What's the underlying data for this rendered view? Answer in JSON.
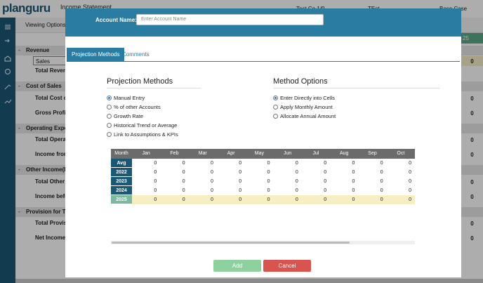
{
  "topbar": {
    "logo": "planguru",
    "report": "Income Statement",
    "company": "Test Co 1/9",
    "scenario_short": "TEst",
    "scenario": "Base Case",
    "viewing": "Viewing Options",
    "column_header": "25"
  },
  "background": {
    "rows": [
      {
        "marker": "-",
        "label": "Revenue"
      },
      {
        "label": "Sales",
        "value": 0
      },
      {
        "label": "Total Revenu"
      },
      {
        "marker": "-",
        "label": "Cost of Sales"
      },
      {
        "label": "Total Cost of",
        "value": 0
      },
      {
        "label": "Gross Profit",
        "value": 0
      },
      {
        "marker": "-",
        "label": "Operating Expen"
      },
      {
        "label": "Total Operati",
        "value": 0
      },
      {
        "label": "Income from",
        "value": 0
      },
      {
        "marker": "-",
        "label": "Other Income(Ex"
      },
      {
        "label": "Total Other In",
        "value": 0
      },
      {
        "label": "Income befor",
        "value": 0
      },
      {
        "marker": "-",
        "label": "Provision for Tax"
      },
      {
        "label": "Total Provisi",
        "value": 0
      },
      {
        "label": "Net Income",
        "value": 0
      }
    ]
  },
  "modal": {
    "account_label": "Account Name:",
    "account_placeholder": "Enter Account Name",
    "tabs": [
      "Projection Methods",
      "Comments"
    ],
    "methods_heading": "Projection Methods",
    "methods": [
      "Manual Entry",
      "% of other Accounts",
      "Growth Rate",
      "Historical Trend or Average",
      "Link to Assumptions & KPIs"
    ],
    "method_selected": 0,
    "options_heading": "Method Options",
    "options": [
      "Enter Directly into Cells",
      "Apply Monthly Amount",
      "Allocate Annual Amount"
    ],
    "option_selected": 0,
    "grid": {
      "header": [
        "Month",
        "Jan",
        "Feb",
        "Mar",
        "Apr",
        "May",
        "Jun",
        "Jul",
        "Aug",
        "Sep",
        "Oct"
      ],
      "rows": [
        {
          "label": "Avg",
          "values": [
            0,
            0,
            0,
            0,
            0,
            0,
            0,
            0,
            0,
            0
          ]
        },
        {
          "label": "2022",
          "values": [
            0,
            0,
            0,
            0,
            0,
            0,
            0,
            0,
            0,
            0
          ]
        },
        {
          "label": "2023",
          "values": [
            0,
            0,
            0,
            0,
            0,
            0,
            0,
            0,
            0,
            0
          ]
        },
        {
          "label": "2024",
          "values": [
            0,
            0,
            0,
            0,
            0,
            0,
            0,
            0,
            0,
            0
          ]
        },
        {
          "label": "2025",
          "values": [
            0,
            0,
            0,
            0,
            0,
            0,
            0,
            0,
            0,
            0
          ]
        }
      ]
    },
    "buttons": {
      "add": "Add",
      "cancel": "Cancel"
    }
  }
}
